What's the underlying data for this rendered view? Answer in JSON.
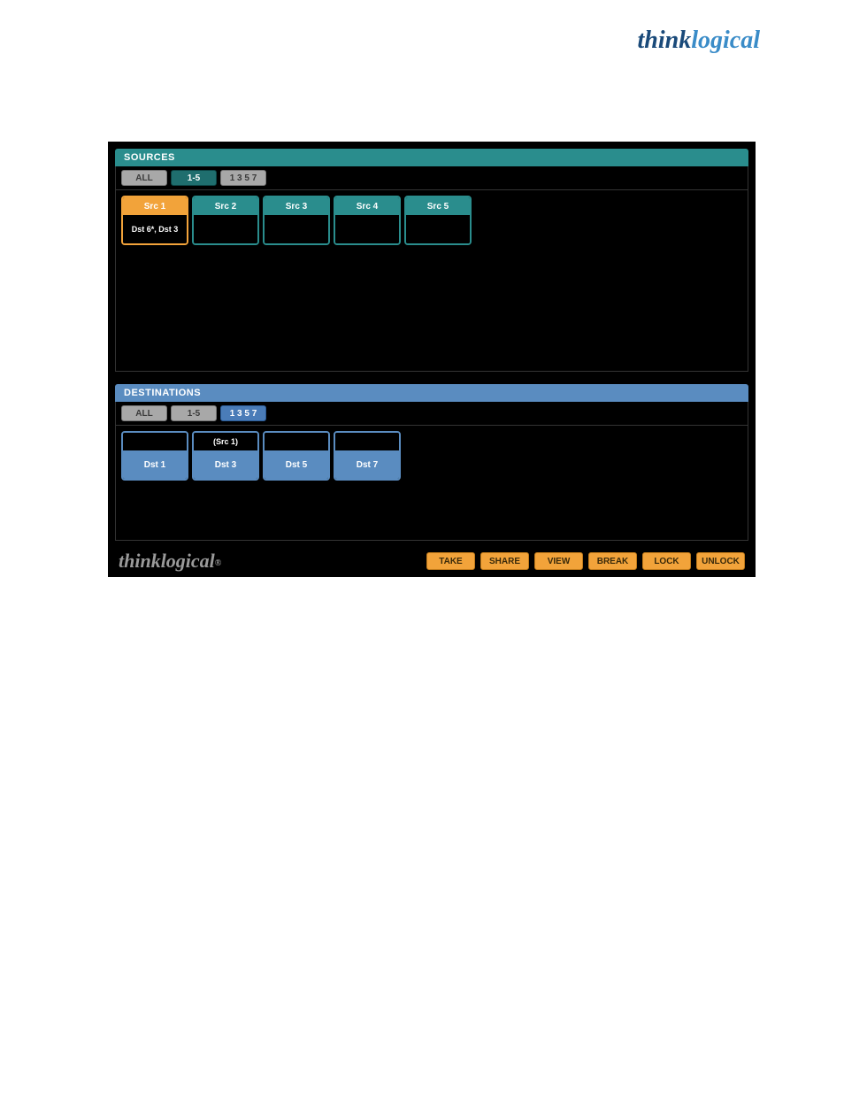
{
  "brand": {
    "part1": "think",
    "part2": "logical"
  },
  "sources": {
    "title": "SOURCES",
    "filters": [
      {
        "label": "ALL",
        "style": "gray"
      },
      {
        "label": "1-5",
        "style": "teal-active"
      },
      {
        "label": "1 3 5 7",
        "style": "gray"
      }
    ],
    "items": [
      {
        "label": "Src 1",
        "sub": "Dst 6*, Dst 3",
        "selected": true
      },
      {
        "label": "Src 2",
        "sub": "",
        "selected": false
      },
      {
        "label": "Src 3",
        "sub": "",
        "selected": false
      },
      {
        "label": "Src 4",
        "sub": "",
        "selected": false
      },
      {
        "label": "Src 5",
        "sub": "",
        "selected": false
      }
    ]
  },
  "destinations": {
    "title": "DESTINATIONS",
    "filters": [
      {
        "label": "ALL",
        "style": "gray"
      },
      {
        "label": "1-5",
        "style": "gray"
      },
      {
        "label": "1 3 5 7",
        "style": "blue-active"
      }
    ],
    "items": [
      {
        "top": "",
        "label": "Dst 1"
      },
      {
        "top": "(Src 1)",
        "label": "Dst 3"
      },
      {
        "top": "",
        "label": "Dst 5"
      },
      {
        "top": "",
        "label": "Dst 7"
      }
    ]
  },
  "footer": {
    "logo": "thinklogical",
    "actions": [
      "TAKE",
      "SHARE",
      "VIEW",
      "BREAK",
      "LOCK",
      "UNLOCK"
    ]
  },
  "colors": {
    "teal": "#2a8d8d",
    "blue": "#5a8cc0",
    "orange": "#f2a33a",
    "gray_tab": "#a8a8a8",
    "black": "#000000",
    "white": "#ffffff"
  }
}
